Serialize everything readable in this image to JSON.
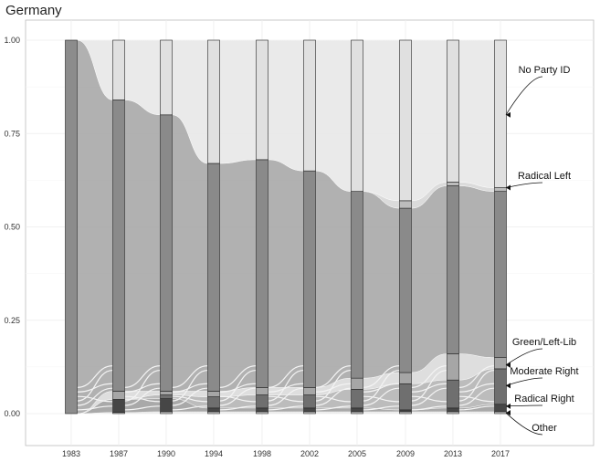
{
  "chart_data": {
    "type": "alluvial",
    "title": "Germany",
    "xlabel": "",
    "ylabel": "",
    "x_ticks": [
      "1983",
      "1987",
      "1990",
      "1994",
      "1998",
      "2002",
      "2005",
      "2009",
      "2013",
      "2017"
    ],
    "y_ticks": [
      "0.00",
      "0.25",
      "0.50",
      "0.75",
      "1.00"
    ],
    "ylim": [
      0,
      1
    ],
    "grid": true,
    "legend": "none",
    "colors": {
      "no_party_id": "#e2e2e2",
      "radical_left": "#bdbdbd",
      "mainstream": "#8c8c8c",
      "green": "#a8a8a8",
      "moderate_right": "#6e6e6e",
      "radical_right": "#454545",
      "other": "#d0d0d0"
    },
    "series": [
      {
        "name": "Other",
        "values": [
          0.0,
          0.003,
          0.005,
          0.005,
          0.005,
          0.005,
          0.005,
          0.005,
          0.005,
          0.005
        ]
      },
      {
        "name": "Radical Right",
        "values": [
          0.0,
          0.035,
          0.035,
          0.01,
          0.01,
          0.01,
          0.01,
          0.005,
          0.01,
          0.02
        ]
      },
      {
        "name": "Moderate Right",
        "values": [
          0.0,
          0.0,
          0.01,
          0.03,
          0.035,
          0.035,
          0.05,
          0.07,
          0.075,
          0.095
        ]
      },
      {
        "name": "Green/Left-Lib",
        "values": [
          0.0,
          0.022,
          0.01,
          0.015,
          0.02,
          0.02,
          0.03,
          0.03,
          0.07,
          0.03
        ]
      },
      {
        "name": "",
        "values": [
          1.0,
          0.78,
          0.74,
          0.61,
          0.61,
          0.58,
          0.5,
          0.44,
          0.45,
          0.445
        ]
      },
      {
        "name": "Radical Left",
        "values": [
          0.0,
          0.0,
          0.0,
          0.0,
          0.0,
          0.0,
          0.0,
          0.02,
          0.01,
          0.01
        ]
      },
      {
        "name": "No Party ID",
        "values": [
          0.0,
          0.16,
          0.2,
          0.33,
          0.32,
          0.35,
          0.405,
          0.43,
          0.38,
          0.395
        ]
      }
    ],
    "annotations": [
      {
        "label": "No Party ID",
        "x": "2017",
        "y": 0.8
      },
      {
        "label": "Radical Left",
        "x": "2017",
        "y": 0.605
      },
      {
        "label": "Green/Left-Lib",
        "x": "2017",
        "y": 0.13
      },
      {
        "label": "Moderate Right",
        "x": "2017",
        "y": 0.075
      },
      {
        "label": "Radical Right",
        "x": "2017",
        "y": 0.02
      },
      {
        "label": "Other",
        "x": "2017",
        "y": 0.002
      }
    ]
  }
}
